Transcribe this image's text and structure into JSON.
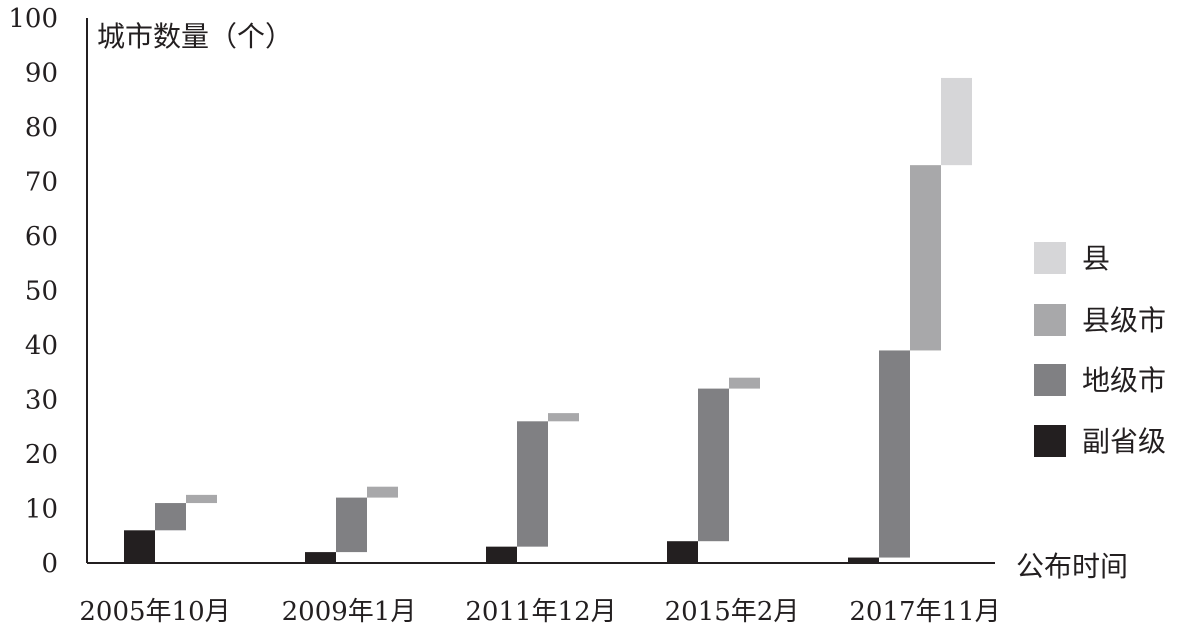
{
  "chart_data": {
    "type": "bar",
    "subtype": "waterfall-stacked",
    "ylabel": "城市数量（个）",
    "xlabel": "公布时间",
    "ylim": [
      0,
      100
    ],
    "yticks": [
      0,
      10,
      20,
      30,
      40,
      50,
      60,
      70,
      80,
      90,
      100
    ],
    "grid": false,
    "legend_position": "right",
    "categories": [
      "2005年10月",
      "2009年1月",
      "2011年12月",
      "2015年2月",
      "2017年11月"
    ],
    "series": [
      {
        "name": "副省级",
        "color": "#231f20",
        "values": [
          6,
          2,
          3,
          4,
          1
        ]
      },
      {
        "name": "地级市",
        "color": "#808083",
        "values": [
          5,
          10,
          23,
          28,
          38
        ]
      },
      {
        "name": "县级市",
        "color": "#a8a8aa",
        "values": [
          1.5,
          2,
          1.5,
          2,
          34
        ]
      },
      {
        "name": "县",
        "color": "#d6d6d8",
        "values": [
          0,
          0,
          0,
          0,
          16
        ]
      }
    ],
    "legend_order": [
      "县",
      "县级市",
      "地级市",
      "副省级"
    ]
  }
}
